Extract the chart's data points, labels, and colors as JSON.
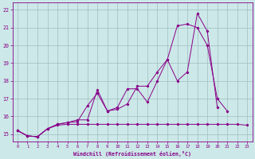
{
  "xlabel": "Windchill (Refroidissement éolien,°C)",
  "bg_color": "#cce8e8",
  "grid_color": "#9fbfbf",
  "line_color": "#880088",
  "xlim": [
    -0.5,
    23.5
  ],
  "ylim": [
    14.6,
    22.4
  ],
  "xticks": [
    0,
    1,
    2,
    3,
    4,
    5,
    6,
    7,
    8,
    9,
    10,
    11,
    12,
    13,
    14,
    15,
    16,
    17,
    18,
    19,
    20,
    21,
    22,
    23
  ],
  "yticks": [
    15,
    16,
    17,
    18,
    19,
    20,
    21,
    22
  ],
  "flat_x": [
    0,
    1,
    2,
    3,
    4,
    5,
    6,
    7,
    8,
    9,
    10,
    11,
    12,
    13,
    14,
    15,
    16,
    17,
    18,
    19,
    20,
    21,
    22,
    23
  ],
  "flat_y": [
    15.2,
    14.9,
    14.85,
    15.3,
    15.5,
    15.55,
    15.55,
    15.55,
    15.55,
    15.55,
    15.55,
    15.55,
    15.55,
    15.55,
    15.55,
    15.55,
    15.55,
    15.55,
    15.55,
    15.55,
    15.55,
    15.55,
    15.55,
    15.5
  ],
  "line2_x": [
    0,
    1,
    2,
    3,
    4,
    5,
    6,
    7,
    8,
    9,
    10,
    11,
    12,
    13,
    14,
    15,
    16,
    17,
    18,
    19,
    20,
    21
  ],
  "line2_y": [
    15.2,
    14.9,
    14.85,
    15.3,
    15.55,
    15.65,
    15.7,
    16.6,
    17.3,
    16.3,
    16.5,
    17.55,
    17.55,
    16.8,
    18.0,
    19.2,
    21.1,
    21.2,
    21.0,
    20.0,
    17.0,
    16.3
  ],
  "line3_x": [
    0,
    1,
    2,
    3,
    4,
    5,
    6,
    7,
    8,
    9,
    10,
    11,
    12,
    13,
    14,
    15,
    16,
    17,
    18,
    19,
    20
  ],
  "line3_y": [
    15.2,
    14.9,
    14.85,
    15.3,
    15.55,
    15.65,
    15.8,
    15.8,
    17.5,
    16.3,
    16.4,
    16.7,
    17.7,
    17.7,
    18.5,
    19.2,
    18.0,
    18.5,
    21.8,
    20.8,
    16.5
  ]
}
